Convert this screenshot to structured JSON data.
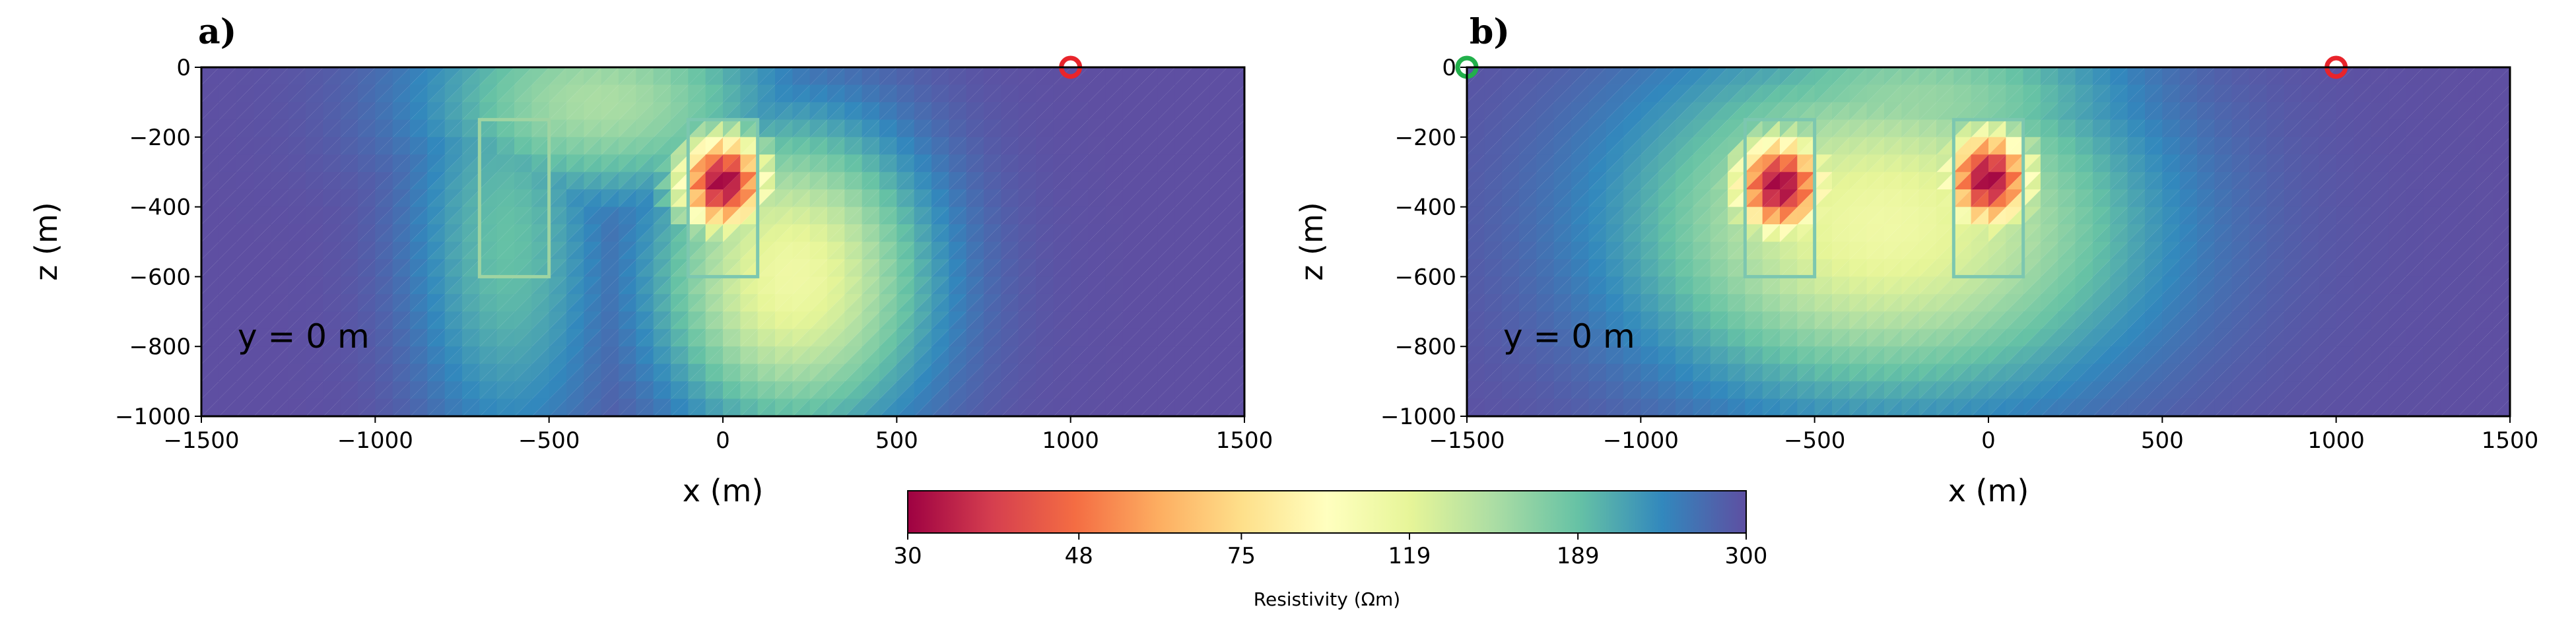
{
  "chart_data": [
    {
      "type": "heatmap",
      "panel_label": "a)",
      "annotation": "y = 0 m",
      "xlabel": "x (m)",
      "ylabel": "z (m)",
      "xlim": [
        -1500,
        1500
      ],
      "ylim": [
        -1000,
        0
      ],
      "xticks": [
        -1500,
        -1000,
        -500,
        0,
        500,
        1000,
        1500
      ],
      "xtick_labels": [
        "−1500",
        "−1000",
        "−500",
        "0",
        "500",
        "1000",
        "1500"
      ],
      "yticks": [
        0,
        -200,
        -400,
        -600,
        -800,
        -1000
      ],
      "ytick_labels": [
        "0",
        "−200",
        "−400",
        "−600",
        "−800",
        "−1000"
      ],
      "background_resistivity": 300,
      "anomalies": [
        {
          "cx": 0,
          "cz": -330,
          "rx": 180,
          "rz": 190,
          "peak": 30,
          "spread": 1.7
        },
        {
          "cx": 200,
          "cz": -600,
          "rx": 380,
          "rz": 430,
          "peak": 110,
          "spread": 1.0
        },
        {
          "cx": -350,
          "cz": -100,
          "rx": 500,
          "rz": 280,
          "peak": 150,
          "spread": 1.0
        },
        {
          "cx": -620,
          "cz": -500,
          "rx": 280,
          "rz": 600,
          "peak": 190,
          "spread": 1.0
        }
      ],
      "boxes": [
        {
          "x0": -700,
          "x1": -500,
          "z0": -150,
          "z1": -600,
          "color": "#9fd4a2"
        },
        {
          "x0": -100,
          "x1": 100,
          "z0": -150,
          "z1": -600,
          "color": "#7cc7b0"
        }
      ],
      "markers": [
        {
          "x": 1000,
          "z": 0,
          "color": "#e8242b"
        }
      ]
    },
    {
      "type": "heatmap",
      "panel_label": "b)",
      "annotation": "y = 0 m",
      "xlabel": "x (m)",
      "ylabel": "z (m)",
      "xlim": [
        -1500,
        1500
      ],
      "ylim": [
        -1000,
        0
      ],
      "xticks": [
        -1500,
        -1000,
        -500,
        0,
        500,
        1000,
        1500
      ],
      "xtick_labels": [
        "−1500",
        "−1000",
        "−500",
        "0",
        "500",
        "1000",
        "1500"
      ],
      "yticks": [
        0,
        -200,
        -400,
        -600,
        -800,
        -1000
      ],
      "ytick_labels": [
        "0",
        "−200",
        "−400",
        "−600",
        "−800",
        "−1000"
      ],
      "background_resistivity": 300,
      "anomalies": [
        {
          "cx": -600,
          "cz": -340,
          "rx": 190,
          "rz": 200,
          "peak": 30,
          "spread": 1.7
        },
        {
          "cx": 0,
          "cz": -320,
          "rx": 180,
          "rz": 200,
          "peak": 30,
          "spread": 1.7
        },
        {
          "cx": -300,
          "cz": -450,
          "rx": 700,
          "rz": 480,
          "peak": 110,
          "spread": 1.0
        },
        {
          "cx": -200,
          "cz": -100,
          "rx": 600,
          "rz": 250,
          "peak": 160,
          "spread": 1.0
        }
      ],
      "boxes": [
        {
          "x0": -700,
          "x1": -500,
          "z0": -150,
          "z1": -600,
          "color": "#7cc7b0"
        },
        {
          "x0": -100,
          "x1": 100,
          "z0": -150,
          "z1": -600,
          "color": "#7cc7b0"
        }
      ],
      "markers": [
        {
          "x": -1500,
          "z": 0,
          "color": "#22b04b"
        },
        {
          "x": 1000,
          "z": 0,
          "color": "#e8242b"
        }
      ]
    }
  ],
  "colorbar": {
    "label": "Resistivity (Ωm)",
    "scale": "log",
    "min": 30,
    "max": 300,
    "ticks": [
      30,
      48,
      75,
      119,
      189,
      300
    ],
    "tick_labels": [
      "30",
      "48",
      "75",
      "119",
      "189",
      "300"
    ],
    "colormap": "Spectral",
    "colors": [
      "#9e0142",
      "#d53e4f",
      "#f46d43",
      "#fdae61",
      "#fee08b",
      "#ffffbf",
      "#e6f598",
      "#abdda4",
      "#66c2a5",
      "#3288bd",
      "#5e4fa2"
    ]
  }
}
